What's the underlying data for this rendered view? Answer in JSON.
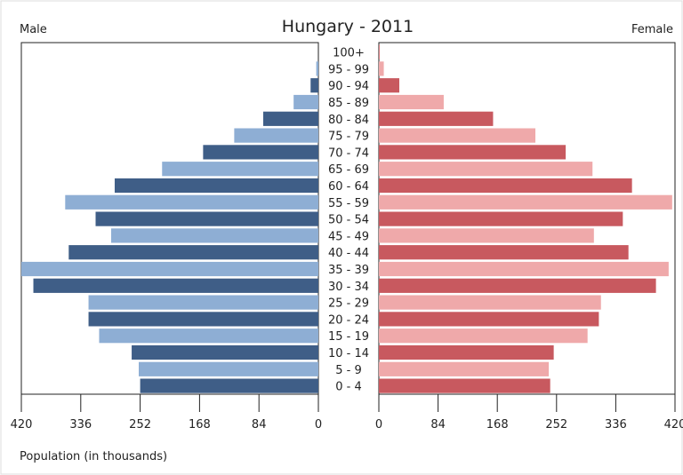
{
  "chart_data": {
    "type": "bar",
    "orientation": "horizontal",
    "layout": "population-pyramid",
    "title": "Hungary - 2011",
    "left_label": "Male",
    "right_label": "Female",
    "xlabel": "Population (in thousands)",
    "xlim": [
      0,
      420
    ],
    "x_ticks_left": [
      "420",
      "336",
      "252",
      "168",
      "84",
      "0"
    ],
    "x_ticks_right": [
      "0",
      "84",
      "168",
      "252",
      "336",
      "420"
    ],
    "categories": [
      "0 - 4",
      "5 - 9",
      "10 - 14",
      "15 - 19",
      "20 - 24",
      "25 - 29",
      "30 - 34",
      "35 - 39",
      "40 - 44",
      "45 - 49",
      "50 - 54",
      "55 - 59",
      "60 - 64",
      "65 - 69",
      "70 - 74",
      "75 - 79",
      "80 - 84",
      "85 - 89",
      "90 - 94",
      "95 - 99",
      "100+"
    ],
    "series": [
      {
        "name": "Male",
        "side": "left",
        "colors": [
          "#3f5e87",
          "#8eaed4"
        ],
        "values": [
          252,
          254,
          264,
          310,
          325,
          325,
          403,
          420,
          353,
          293,
          315,
          358,
          288,
          221,
          163,
          119,
          78,
          35,
          11,
          3,
          0
        ]
      },
      {
        "name": "Female",
        "side": "right",
        "colors": [
          "#c8595f",
          "#efa9aa"
        ],
        "values": [
          243,
          241,
          248,
          296,
          312,
          315,
          393,
          411,
          354,
          305,
          346,
          416,
          359,
          303,
          265,
          222,
          162,
          92,
          29,
          7,
          1
        ]
      }
    ]
  }
}
